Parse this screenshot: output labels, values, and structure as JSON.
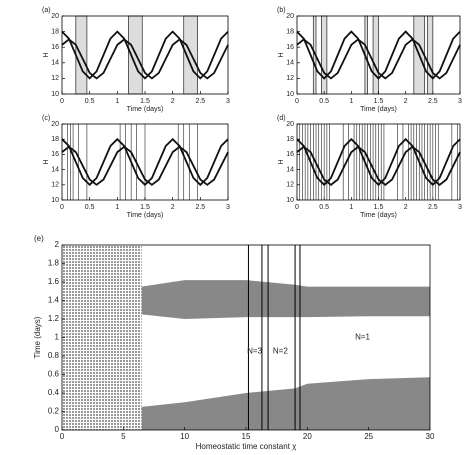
{
  "chart_data": [
    {
      "type": "line",
      "panel": "(a)",
      "ylabel": "H",
      "xlabel": "Time (days)",
      "xlim": [
        0,
        3
      ],
      "ylim": [
        10,
        20
      ],
      "xticks": [
        0,
        0.5,
        1,
        1.5,
        2,
        2.5,
        3
      ],
      "yticks": [
        10,
        12,
        14,
        16,
        18,
        20
      ],
      "x": [
        0,
        0.125,
        0.25,
        0.375,
        0.5,
        0.625,
        0.75,
        0.875,
        1,
        1.125,
        1.25,
        1.375,
        1.5,
        1.625,
        1.75,
        1.875,
        2,
        2.125,
        2.25,
        2.375,
        2.5,
        2.625,
        2.75,
        2.875,
        3
      ],
      "series": [
        {
          "color": "#111",
          "values": [
            18,
            17.1,
            15,
            12.9,
            12,
            12.9,
            15,
            17.1,
            18,
            17.1,
            15,
            12.9,
            12,
            12.9,
            15,
            17.1,
            18,
            17.1,
            15,
            12.9,
            12,
            12.9,
            15,
            17.1,
            18
          ]
        },
        {
          "color": "#111",
          "values": [
            16.3,
            17,
            16.3,
            14.5,
            12.7,
            12,
            12.7,
            14.5,
            16.3,
            17,
            16.3,
            14.5,
            12.7,
            12,
            12.7,
            14.5,
            16.3,
            17,
            16.3,
            14.5,
            12.7,
            12,
            12.7,
            14.5,
            16.3
          ]
        }
      ],
      "shaded": [
        [
          0.25,
          0.45
        ],
        [
          1.2,
          1.45
        ],
        [
          2.2,
          2.45
        ]
      ],
      "vlines": []
    },
    {
      "type": "line",
      "panel": "(b)",
      "ylabel": "H",
      "xlabel": "Time (days)",
      "xlim": [
        0,
        3
      ],
      "ylim": [
        10,
        20
      ],
      "xticks": [
        0,
        0.5,
        1,
        1.5,
        2,
        2.5,
        3
      ],
      "yticks": [
        10,
        12,
        14,
        16,
        18,
        20
      ],
      "x": [
        0,
        0.125,
        0.25,
        0.375,
        0.5,
        0.625,
        0.75,
        0.875,
        1,
        1.125,
        1.25,
        1.375,
        1.5,
        1.625,
        1.75,
        1.875,
        2,
        2.125,
        2.25,
        2.375,
        2.5,
        2.625,
        2.75,
        2.875,
        3
      ],
      "series": [
        {
          "color": "#111",
          "values": [
            18,
            17.1,
            15,
            12.9,
            12,
            12.9,
            15,
            17.1,
            18,
            17.1,
            15,
            12.9,
            12,
            12.9,
            15,
            17.1,
            18,
            17.1,
            15,
            12.9,
            12,
            12.9,
            15,
            17.1,
            18
          ]
        },
        {
          "color": "#111",
          "values": [
            16.3,
            17,
            16.3,
            14.5,
            12.7,
            12,
            12.7,
            14.5,
            16.3,
            17,
            16.3,
            14.5,
            12.7,
            12,
            12.7,
            14.5,
            16.3,
            17,
            16.3,
            14.5,
            12.7,
            12,
            12.7,
            14.5,
            16.3
          ]
        }
      ],
      "shaded": [
        [
          0.3,
          0.35
        ],
        [
          0.45,
          0.55
        ],
        [
          1.25,
          1.3
        ],
        [
          1.4,
          1.5
        ],
        [
          2.15,
          2.35
        ],
        [
          2.4,
          2.5
        ]
      ],
      "vlines": []
    },
    {
      "type": "line",
      "panel": "(c)",
      "ylabel": "H",
      "xlabel": "Time (days)",
      "xlim": [
        0,
        3
      ],
      "ylim": [
        10,
        20
      ],
      "xticks": [
        0,
        0.5,
        1,
        1.5,
        2,
        2.5,
        3
      ],
      "yticks": [
        10,
        12,
        14,
        16,
        18,
        20
      ],
      "x": [
        0,
        0.125,
        0.25,
        0.375,
        0.5,
        0.625,
        0.75,
        0.875,
        1,
        1.125,
        1.25,
        1.375,
        1.5,
        1.625,
        1.75,
        1.875,
        2,
        2.125,
        2.25,
        2.375,
        2.5,
        2.625,
        2.75,
        2.875,
        3
      ],
      "series": [
        {
          "color": "#111",
          "values": [
            18,
            17.1,
            15,
            12.9,
            12,
            12.9,
            15,
            17.1,
            18,
            17.1,
            15,
            12.9,
            12,
            12.9,
            15,
            17.1,
            18,
            17.1,
            15,
            12.9,
            12,
            12.9,
            15,
            17.1,
            18
          ]
        },
        {
          "color": "#111",
          "values": [
            16.3,
            17,
            16.3,
            14.5,
            12.7,
            12,
            12.7,
            14.5,
            16.3,
            17,
            16.3,
            14.5,
            12.7,
            12,
            12.7,
            14.5,
            16.3,
            17,
            16.3,
            14.5,
            12.7,
            12,
            12.7,
            14.5,
            16.3
          ]
        }
      ],
      "shaded": [],
      "vlines": [
        0.1,
        0.15,
        0.2,
        0.3,
        0.45,
        1.05,
        1.15,
        1.25,
        1.35,
        1.5,
        2.1,
        2.2,
        2.3,
        2.45
      ]
    },
    {
      "type": "line",
      "panel": "(d)",
      "ylabel": "H",
      "xlabel": "Time (days)",
      "xlim": [
        0,
        3
      ],
      "ylim": [
        10,
        20
      ],
      "xticks": [
        0,
        0.5,
        1,
        1.5,
        2,
        2.5,
        3
      ],
      "yticks": [
        10,
        12,
        14,
        16,
        18,
        20
      ],
      "x": [
        0,
        0.125,
        0.25,
        0.375,
        0.5,
        0.625,
        0.75,
        0.875,
        1,
        1.125,
        1.25,
        1.375,
        1.5,
        1.625,
        1.75,
        1.875,
        2,
        2.125,
        2.25,
        2.375,
        2.5,
        2.625,
        2.75,
        2.875,
        3
      ],
      "series": [
        {
          "color": "#111",
          "values": [
            18,
            17.1,
            15,
            12.9,
            12,
            12.9,
            15,
            17.1,
            18,
            17.1,
            15,
            12.9,
            12,
            12.9,
            15,
            17.1,
            18,
            17.1,
            15,
            12.9,
            12,
            12.9,
            15,
            17.1,
            18
          ]
        },
        {
          "color": "#111",
          "values": [
            16.3,
            17,
            16.3,
            14.5,
            12.7,
            12,
            12.7,
            14.5,
            16.3,
            17,
            16.3,
            14.5,
            12.7,
            12,
            12.7,
            14.5,
            16.3,
            17,
            16.3,
            14.5,
            12.7,
            12,
            12.7,
            14.5,
            16.3
          ]
        }
      ],
      "shaded": [],
      "vlines": [
        0.05,
        0.1,
        0.15,
        0.2,
        0.25,
        0.3,
        0.35,
        0.4,
        0.45,
        0.5,
        0.55,
        0.6,
        0.85,
        0.95,
        1.05,
        1.1,
        1.15,
        1.2,
        1.25,
        1.3,
        1.35,
        1.4,
        1.45,
        1.5,
        1.55,
        1.6,
        1.85,
        1.95,
        2.05,
        2.1,
        2.15,
        2.2,
        2.25,
        2.3,
        2.35,
        2.4,
        2.45,
        2.5,
        2.55,
        2.6,
        2.85,
        2.95
      ]
    },
    {
      "type": "range",
      "panel": "(e)",
      "ylabel": "Time (days)",
      "xlabel": "Homeostatic time constant χ",
      "xlim": [
        0,
        30
      ],
      "ylim": [
        0,
        2
      ],
      "xticks": [
        0,
        5,
        10,
        15,
        20,
        25,
        30
      ],
      "yticks": [
        0,
        0.2,
        0.4,
        0.6,
        0.8,
        1,
        1.2,
        1.4,
        1.6,
        1.8,
        2
      ],
      "bands": [
        {
          "color": "#999",
          "x": [
            0,
            6.5
          ],
          "low": [
            0,
            0
          ],
          "high": [
            2,
            2
          ]
        },
        {
          "color": "#888",
          "x": [
            6.5,
            10,
            15,
            19,
            20,
            25,
            30
          ],
          "low": [
            0,
            0,
            0,
            0,
            0,
            0,
            0
          ],
          "high": [
            0.25,
            0.3,
            0.4,
            0.45,
            0.5,
            0.55,
            0.57
          ]
        },
        {
          "color": "#888",
          "x": [
            6.5,
            10,
            15,
            19,
            20,
            25,
            30
          ],
          "low": [
            1.25,
            1.2,
            1.22,
            1.22,
            1.22,
            1.23,
            1.23
          ],
          "high": [
            1.55,
            1.62,
            1.62,
            1.57,
            1.55,
            1.55,
            1.55
          ]
        }
      ],
      "vlines": [
        15.2,
        16.3,
        16.8,
        19,
        19.4
      ],
      "annotations": [
        "N=3",
        "N=2",
        "N=1"
      ]
    }
  ]
}
